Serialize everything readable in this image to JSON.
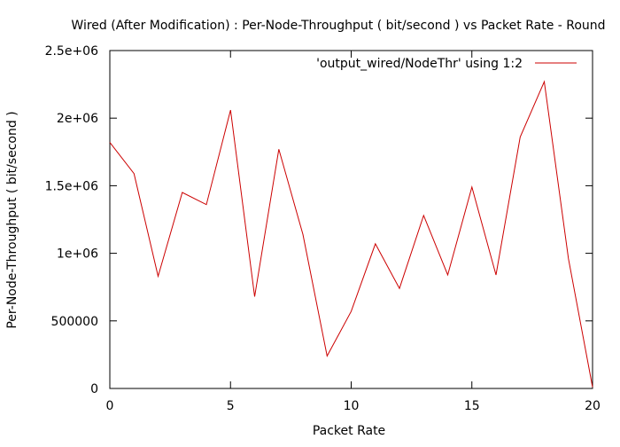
{
  "chart_data": {
    "type": "line",
    "title": "Wired (After Modification) : Per-Node-Throughput ( bit/second ) vs Packet Rate - Round",
    "xlabel": "Packet Rate",
    "ylabel": "Per-Node-Throughput ( bit/second )",
    "xlim": [
      0,
      20
    ],
    "ylim": [
      0,
      2500000
    ],
    "x_ticks": [
      0,
      5,
      10,
      15,
      20
    ],
    "x_tick_labels": [
      "0",
      "5",
      "10",
      "15",
      "20"
    ],
    "y_ticks": [
      0,
      500000,
      1000000,
      1500000,
      2000000,
      2500000
    ],
    "y_tick_labels": [
      "0",
      "500000",
      "1e+06",
      "1.5e+06",
      "2e+06",
      "2.5e+06"
    ],
    "grid": false,
    "legend_position": "top-right",
    "series": [
      {
        "name": "'output_wired/NodeThr' using 1:2",
        "color": "#cc0000",
        "x": [
          0,
          1,
          2,
          3,
          4,
          5,
          6,
          7,
          8,
          9,
          10,
          11,
          12,
          13,
          14,
          15,
          16,
          17,
          18,
          19,
          20
        ],
        "y": [
          1820000,
          1590000,
          830000,
          1450000,
          1360000,
          2060000,
          680000,
          1770000,
          1140000,
          240000,
          570000,
          1070000,
          740000,
          1280000,
          840000,
          1490000,
          840000,
          1860000,
          2270000,
          960000,
          10000
        ]
      }
    ]
  }
}
